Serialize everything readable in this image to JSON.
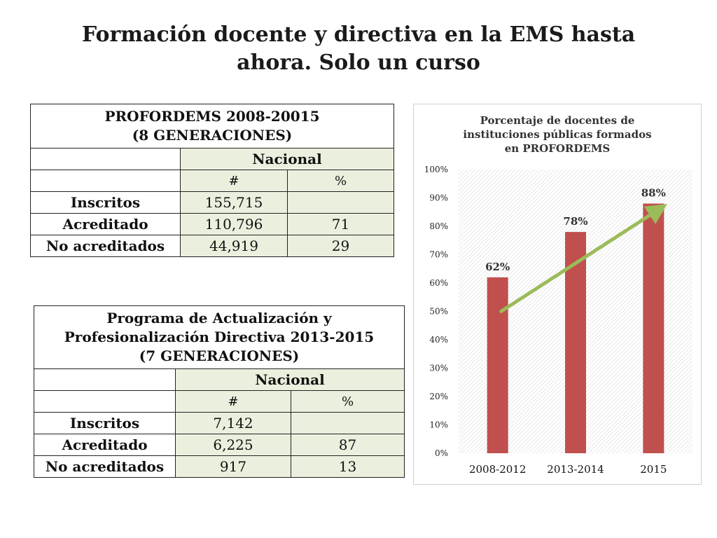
{
  "slide": {
    "title": "Formación docente y directiva en la EMS hasta ahora. Solo un curso"
  },
  "table1": {
    "header_line1": "PROFORDEMS 2008-20015",
    "header_line2": "(8 GENERACIONES)",
    "column_group": "Nacional",
    "col_count": "#",
    "col_pct": "%",
    "rows": [
      {
        "label": "Inscritos",
        "count": "155,715",
        "pct": ""
      },
      {
        "label": "Acreditado",
        "count": "110,796",
        "pct": "71"
      },
      {
        "label": "No acreditados",
        "count": "44,919",
        "pct": "29"
      }
    ]
  },
  "table2": {
    "header_line1": "Programa de Actualización y",
    "header_line2": "Profesionalización Directiva 2013-2015",
    "header_line3": "(7 GENERACIONES)",
    "column_group": "Nacional",
    "col_count": "#",
    "col_pct": "%",
    "rows": [
      {
        "label": "Inscritos",
        "count": "7,142",
        "pct": ""
      },
      {
        "label": "Acreditado",
        "count": "6,225",
        "pct": "87"
      },
      {
        "label": "No acreditados",
        "count": "917",
        "pct": "13"
      }
    ]
  },
  "chart_data": {
    "type": "bar",
    "title_lines": [
      "Porcentaje de docentes de",
      "instituciones públicas formados",
      "en PROFORDEMS"
    ],
    "categories": [
      "2008-2012",
      "2013-2014",
      "2015"
    ],
    "values": [
      62,
      78,
      88
    ],
    "data_labels": [
      "62%",
      "78%",
      "88%"
    ],
    "y_ticks": [
      "0%",
      "10%",
      "20%",
      "30%",
      "40%",
      "50%",
      "60%",
      "70%",
      "80%",
      "90%",
      "100%"
    ],
    "ylim": [
      0,
      100
    ],
    "trend_arrow": {
      "from": [
        0,
        50
      ],
      "to": [
        2,
        86
      ]
    },
    "colors": {
      "bar": "#c0504d",
      "arrow": "#9bbb59",
      "plot_hatch": "#d9d9d9"
    },
    "grid": false,
    "legend": "none"
  }
}
